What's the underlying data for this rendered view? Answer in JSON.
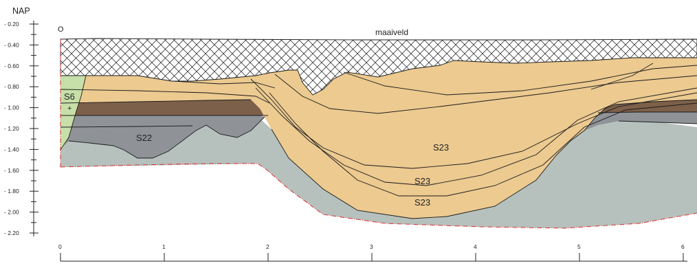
{
  "title": "NAP",
  "y_axis": {
    "ticks": [
      "- 0.20",
      "- 0.40",
      "- 0.60",
      "- 0.80",
      "- 1.00",
      "- 1.20",
      "- 1.40",
      "- 1.60",
      "- 1.80",
      "- 2.00",
      "- 2.20"
    ]
  },
  "x_axis": {
    "ticks": [
      "0",
      "1",
      "2",
      "3",
      "4",
      "5",
      "6"
    ]
  },
  "labels": {
    "origin": "O",
    "surface": "maaiveld",
    "s6": "S6",
    "s6_marker": "+",
    "s22": "S22",
    "s23_upper": "S23",
    "s23_middle": "S23",
    "s23_lower": "S23"
  },
  "colors": {
    "sand": "#ecca90",
    "peat": "#7c6049",
    "grey_clay": "#8f9397",
    "base_clay": "#b6c1bd",
    "green": "#c7dfa8",
    "boundary": "#d93030",
    "hatch": "#111111"
  }
}
